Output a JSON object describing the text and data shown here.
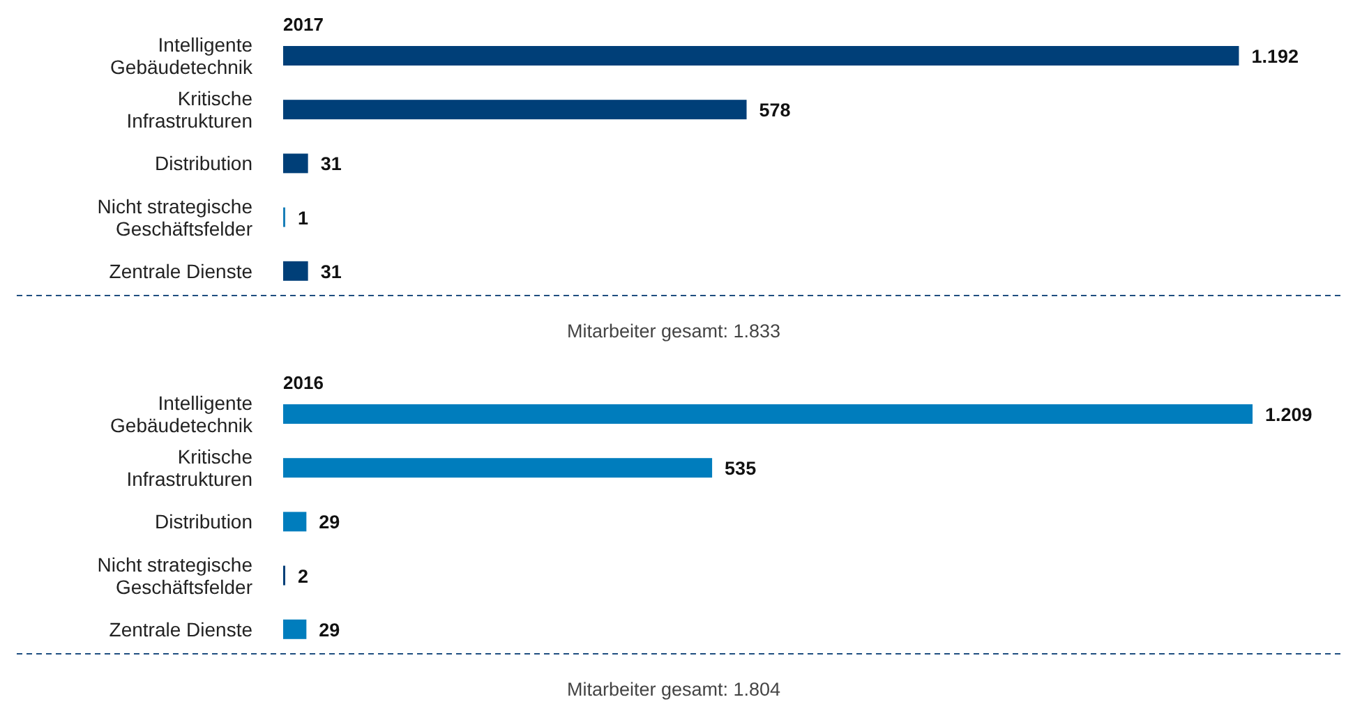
{
  "chart_data": [
    {
      "type": "bar",
      "orientation": "horizontal",
      "title": "2017",
      "categories": [
        "Intelligente Gebäudetechnik",
        "Kritische Infrastrukturen",
        "Distribution",
        "Nicht strategische Geschäftsfelder",
        "Zentrale Dienste"
      ],
      "values": [
        1192,
        578,
        31,
        1,
        31
      ],
      "colors": [
        "#003f78",
        "#003f78",
        "#003f78",
        "#1a7fb8",
        "#003f78"
      ],
      "value_labels": [
        "1.192",
        "578",
        "31",
        "1",
        "31"
      ],
      "annotations": [
        "Mitarbeiter gesamt: 1.833"
      ]
    },
    {
      "type": "bar",
      "orientation": "horizontal",
      "title": "2016",
      "categories": [
        "Intelligente Gebäudetechnik",
        "Kritische Infrastrukturen",
        "Distribution",
        "Nicht strategische Geschäftsfelder",
        "Zentrale Dienste"
      ],
      "values": [
        1209,
        535,
        29,
        2,
        29
      ],
      "colors": [
        "#007dbd",
        "#007dbd",
        "#007dbd",
        "#003f78",
        "#007dbd"
      ],
      "value_labels": [
        "1.209",
        "535",
        "29",
        "2",
        "29"
      ],
      "annotations": [
        "Mitarbeiter gesamt: 1.804"
      ]
    }
  ]
}
